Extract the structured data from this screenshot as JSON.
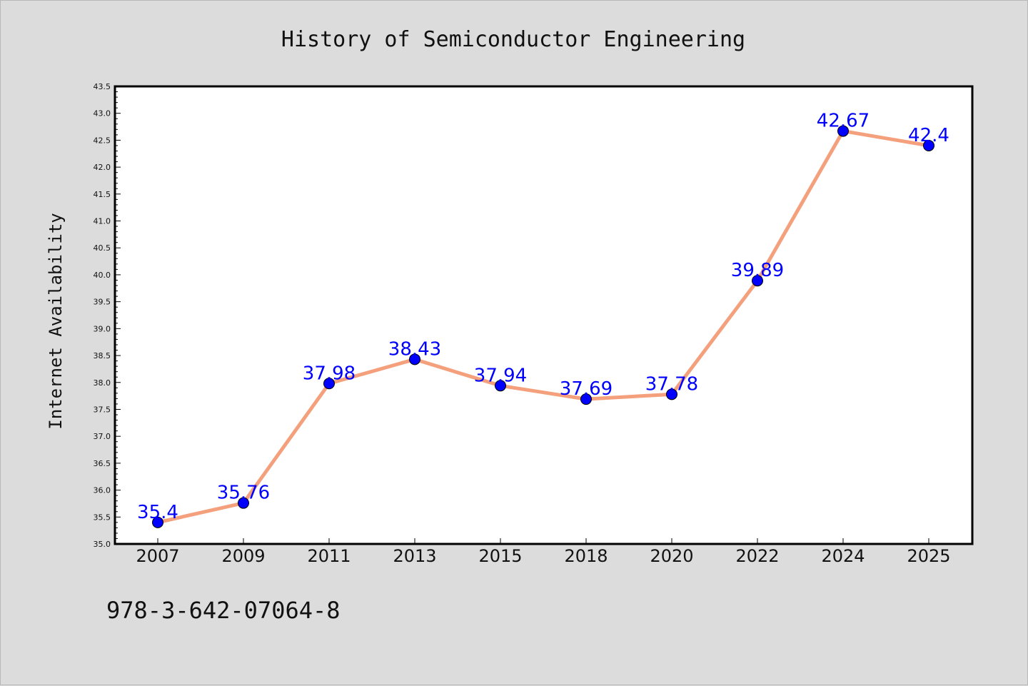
{
  "chart_data": {
    "type": "line",
    "title": "History of Semiconductor Engineering",
    "ylabel": "Internet Availability",
    "xlabel": "",
    "categories": [
      "2007",
      "2009",
      "2011",
      "2013",
      "2015",
      "2018",
      "2020",
      "2022",
      "2024",
      "2025"
    ],
    "series": [
      {
        "values": [
          35.4,
          35.76,
          37.98,
          38.43,
          37.94,
          37.69,
          37.78,
          39.89,
          42.67,
          42.4
        ],
        "data_labels": [
          "35.4",
          "35.76",
          "37.98",
          "38.43",
          "37.94",
          "37.69",
          "37.78",
          "39.89",
          "42.67",
          "42.4"
        ],
        "line_color": "#f4a07c",
        "marker_color": "#0000ff"
      }
    ],
    "ylim": [
      35.0,
      43.5
    ],
    "yticks": [
      "35.0",
      "35.5",
      "36.0",
      "36.5",
      "37.0",
      "37.5",
      "38.0",
      "38.5",
      "39.0",
      "39.5",
      "40.0",
      "40.5",
      "41.0",
      "41.5",
      "42.0",
      "42.5",
      "43.0",
      "43.5"
    ],
    "grid": false,
    "label_color": "#0000ff",
    "background_color": "#dcdcdc",
    "plot_background_color": "#ffffff"
  },
  "footnote": "978-3-642-07064-8"
}
